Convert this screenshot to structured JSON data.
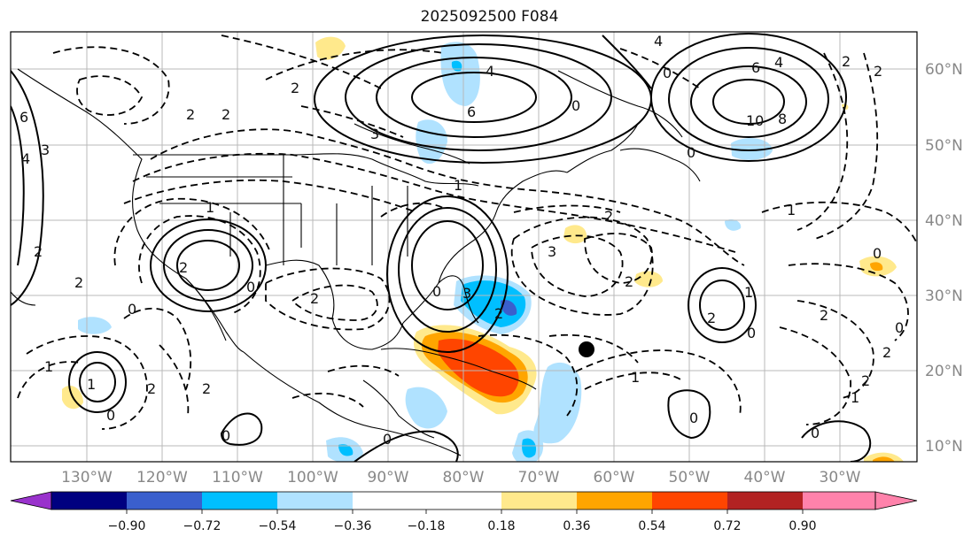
{
  "title": "2025092500 F084",
  "map": {
    "lon_labels": [
      "130°W",
      "120°W",
      "110°W",
      "100°W",
      "90°W",
      "80°W",
      "70°W",
      "60°W",
      "50°W",
      "40°W",
      "30°W"
    ],
    "lat_labels": [
      "60°N",
      "50°N",
      "40°N",
      "30°N",
      "20°N",
      "10°N"
    ],
    "contour_labels": [
      "6",
      "4",
      "3",
      "2",
      "2",
      "4",
      "6",
      "10",
      "8",
      "4",
      "6",
      "4",
      "3",
      "2",
      "3",
      "2",
      "1",
      "2",
      "2",
      "1",
      "2",
      "2",
      "0",
      "0",
      "3",
      "2",
      "1",
      "0",
      "2",
      "0",
      "1",
      "2",
      "2",
      "0",
      "0",
      "2",
      "2",
      "1",
      "0",
      "1",
      "0",
      "0",
      "0",
      "0",
      "2",
      "1",
      "2",
      "0",
      "0",
      "0",
      "2",
      "1",
      "2"
    ]
  },
  "colorbar": {
    "ticks": [
      "−0.90",
      "−0.72",
      "−0.54",
      "−0.36",
      "−0.18",
      "0.18",
      "0.36",
      "0.54",
      "0.72",
      "0.90"
    ],
    "colors": [
      "#9932cc",
      "#000080",
      "#3a5fcd",
      "#00bfff",
      "#b0e2ff",
      "#ffffff",
      "#ffe98c",
      "#ffa500",
      "#ff4500",
      "#b22222",
      "#ff82ab"
    ]
  }
}
